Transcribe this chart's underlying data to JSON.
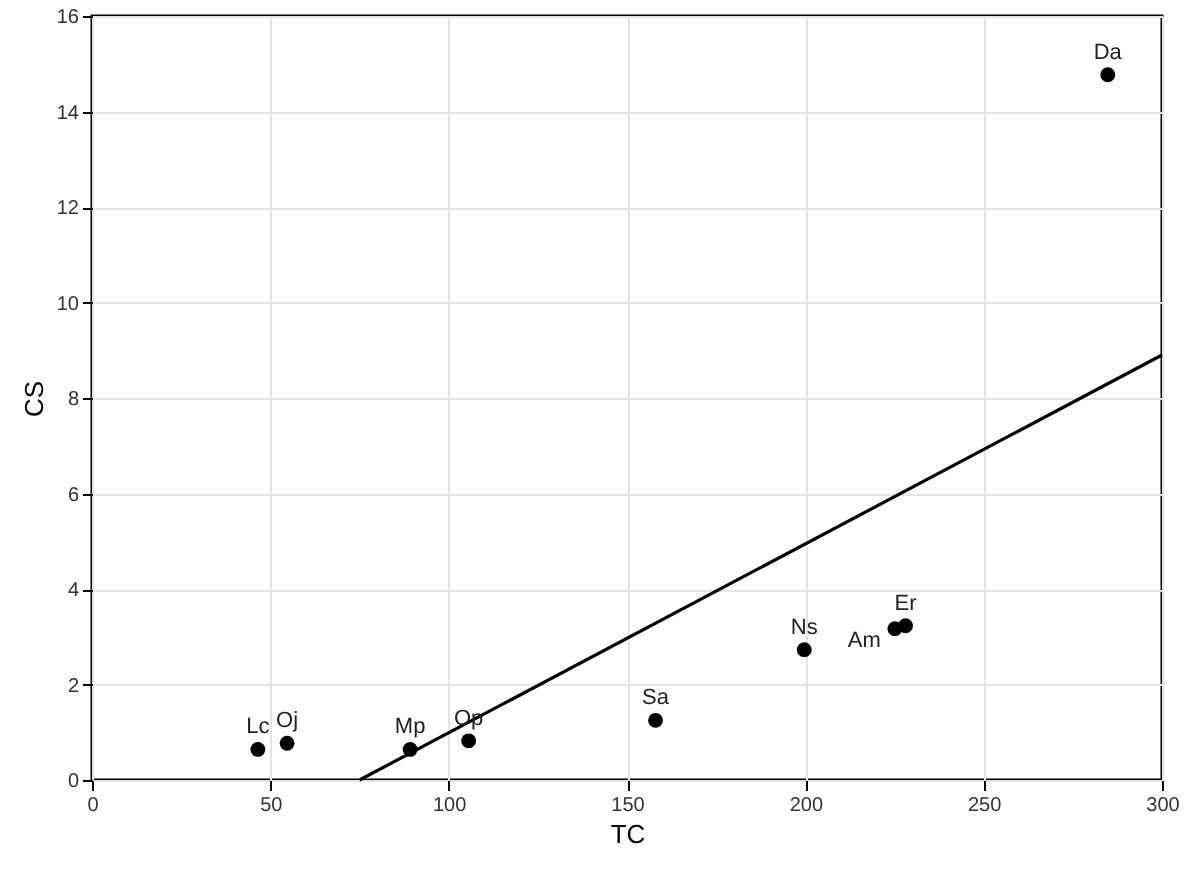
{
  "chart_data": {
    "type": "scatter",
    "xlabel": "TC",
    "ylabel": "CS",
    "xlim": [
      0,
      300
    ],
    "ylim": [
      0,
      16
    ],
    "xticks": [
      0,
      50,
      100,
      150,
      200,
      250,
      300
    ],
    "yticks": [
      0,
      2,
      4,
      6,
      8,
      10,
      12,
      14,
      16
    ],
    "grid": true,
    "series": [
      {
        "marker": "circle",
        "color": "#000000",
        "x": [
          46.5,
          54.7,
          89.2,
          105.6,
          158,
          199.7,
          225.1,
          228.1,
          284.8
        ],
        "values": [
          0.64,
          0.77,
          0.64,
          0.82,
          1.25,
          2.73,
          3.17,
          3.23,
          14.77
        ]
      },
      {
        "type": "line",
        "marker": "none",
        "color": "#000000",
        "line_style": "solid",
        "x": [
          75,
          300
        ],
        "values": [
          0,
          8.9
        ]
      }
    ],
    "annotations": [
      {
        "text": "Lc",
        "x": 46.5,
        "y": 0.64
      },
      {
        "text": "Oj",
        "x": 54.7,
        "y": 0.77
      },
      {
        "text": "Mp",
        "x": 89.2,
        "y": 0.64
      },
      {
        "text": "Op",
        "x": 105.6,
        "y": 0.82
      },
      {
        "text": "Sa",
        "x": 158,
        "y": 1.25
      },
      {
        "text": "Ns",
        "x": 199.7,
        "y": 2.73
      },
      {
        "text": "Am",
        "x": 225.1,
        "y": 3.17
      },
      {
        "text": "Er",
        "x": 228.1,
        "y": 3.23
      },
      {
        "text": "Da",
        "x": 284.8,
        "y": 14.77
      }
    ]
  }
}
